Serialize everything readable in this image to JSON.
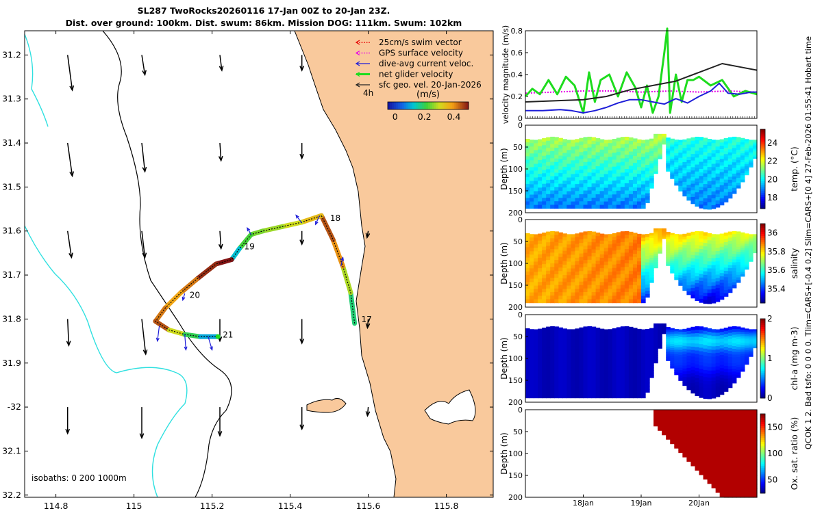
{
  "title": {
    "line1": "SL287 TwoRocks20260116 17-Jan 00Z to 20-Jan 23Z.",
    "line2": "Dist. over ground: 100km. Dist. swum: 86km. Mission DOG: 111km. Swum: 102km"
  },
  "side_text": "QCOK 1  2. Bad tsfo: 0  0  0  0. Tlim=CARS+[-0.4 0.2] Slim=CARS+[0 4] 27-Feb-2026 01:55:41 Hobart time",
  "colors": {
    "land": "#f9c99c",
    "isobath": "#2fe0e0",
    "swim": "#e60000",
    "gps": "#e600e6",
    "current": "#1d1dd8",
    "net": "#1edc1e",
    "sfc": "#222222"
  },
  "chart_data": [
    {
      "type": "map",
      "xlim": [
        114.72,
        115.92
      ],
      "ylim": [
        -32.205,
        -31.145
      ],
      "x_ticks": [
        114.8,
        115,
        115.2,
        115.4,
        115.6,
        115.8
      ],
      "x_tick_labels": [
        "114.8",
        "115",
        "115.2",
        "115.4",
        "115.6",
        "115.8"
      ],
      "y_ticks": [
        -31.2,
        -31.3,
        -31.4,
        -31.5,
        -31.6,
        -31.7,
        -31.8,
        -31.9,
        -32.0,
        -32.1,
        -32.2
      ],
      "y_tick_labels": [
        "31.2",
        "31.3",
        "31.4",
        "31.5",
        "31.6",
        "31.7",
        "31.8",
        "31.9",
        "-32",
        "32.1",
        "32.2"
      ],
      "legend": [
        {
          "key": "swim",
          "label": "25cm/s swim vector",
          "style": "dotted"
        },
        {
          "key": "gps",
          "label": "GPS surface velocity",
          "style": "dotted"
        },
        {
          "key": "current",
          "label": "dive-avg current veloc.",
          "style": "solid"
        },
        {
          "key": "net",
          "label": "net glider velocity",
          "style": "thick"
        },
        {
          "key": "sfc",
          "label": "sfc geo. vel. 20-Jan-2026",
          "style": "solid"
        }
      ],
      "legend_note": "4h",
      "speed_colorbar": {
        "label": "(m/s)",
        "range": [
          -0.05,
          0.5
        ],
        "ticks": [
          0,
          0.2,
          0.4
        ],
        "tick_labels": [
          "0",
          "0.2",
          "0.4"
        ]
      },
      "isobath_label": "isobaths: 0   200  1000m",
      "track": [
        {
          "lon": 115.565,
          "lat": -31.81,
          "speed": 0.18
        },
        {
          "lon": 115.555,
          "lat": -31.74,
          "speed": 0.28
        },
        {
          "lon": 115.535,
          "lat": -31.68,
          "speed": 0.4
        },
        {
          "lon": 115.51,
          "lat": -31.62,
          "speed": 0.45
        },
        {
          "lon": 115.48,
          "lat": -31.565,
          "speed": 0.35
        },
        {
          "lon": 115.43,
          "lat": -31.58,
          "speed": 0.3
        },
        {
          "lon": 115.38,
          "lat": -31.59,
          "speed": 0.27
        },
        {
          "lon": 115.33,
          "lat": -31.6,
          "speed": 0.25
        },
        {
          "lon": 115.3,
          "lat": -31.608,
          "speed": 0.22
        },
        {
          "lon": 115.27,
          "lat": -31.64,
          "speed": 0.12
        },
        {
          "lon": 115.25,
          "lat": -31.665,
          "speed": 0.5
        },
        {
          "lon": 115.21,
          "lat": -31.675,
          "speed": 0.48
        },
        {
          "lon": 115.16,
          "lat": -31.71,
          "speed": 0.42
        },
        {
          "lon": 115.12,
          "lat": -31.74,
          "speed": 0.38
        },
        {
          "lon": 115.08,
          "lat": -31.775,
          "speed": 0.42
        },
        {
          "lon": 115.055,
          "lat": -31.805,
          "speed": 0.45
        },
        {
          "lon": 115.09,
          "lat": -31.825,
          "speed": 0.3
        },
        {
          "lon": 115.13,
          "lat": -31.835,
          "speed": 0.2
        },
        {
          "lon": 115.17,
          "lat": -31.84,
          "speed": 0.1
        },
        {
          "lon": 115.215,
          "lat": -31.84,
          "speed": 0.05
        }
      ],
      "day_labels": [
        {
          "text": "17",
          "lon": 115.57,
          "lat": -31.81
        },
        {
          "text": "18",
          "lon": 115.49,
          "lat": -31.58
        },
        {
          "text": "19",
          "lon": 115.27,
          "lat": -31.645
        },
        {
          "text": "20",
          "lon": 115.13,
          "lat": -31.755
        },
        {
          "text": "21",
          "lon": 115.215,
          "lat": -31.845
        }
      ],
      "geo_vectors": [
        {
          "lon": 114.83,
          "lat": -31.2,
          "dlon": 0.012,
          "dlat": -0.08
        },
        {
          "lon": 115.02,
          "lat": -31.2,
          "dlon": 0.008,
          "dlat": -0.045
        },
        {
          "lon": 115.22,
          "lat": -31.2,
          "dlon": 0.005,
          "dlat": -0.035
        },
        {
          "lon": 115.43,
          "lat": -31.2,
          "dlon": 0.0,
          "dlat": -0.035
        },
        {
          "lon": 114.83,
          "lat": -31.4,
          "dlon": 0.012,
          "dlat": -0.075
        },
        {
          "lon": 115.02,
          "lat": -31.4,
          "dlon": 0.008,
          "dlat": -0.065
        },
        {
          "lon": 115.22,
          "lat": -31.4,
          "dlon": 0.003,
          "dlat": -0.04
        },
        {
          "lon": 115.43,
          "lat": -31.4,
          "dlon": 0.0,
          "dlat": -0.035
        },
        {
          "lon": 114.83,
          "lat": -31.6,
          "dlon": 0.01,
          "dlat": -0.06
        },
        {
          "lon": 115.02,
          "lat": -31.6,
          "dlon": 0.008,
          "dlat": -0.06
        },
        {
          "lon": 115.22,
          "lat": -31.6,
          "dlon": 0.003,
          "dlat": -0.04
        },
        {
          "lon": 115.43,
          "lat": -31.6,
          "dlon": 0.0,
          "dlat": -0.03
        },
        {
          "lon": 115.6,
          "lat": -31.6,
          "dlon": -0.003,
          "dlat": -0.015
        },
        {
          "lon": 114.83,
          "lat": -31.8,
          "dlon": 0.003,
          "dlat": -0.06
        },
        {
          "lon": 115.02,
          "lat": -31.8,
          "dlon": 0.01,
          "dlat": -0.08
        },
        {
          "lon": 115.22,
          "lat": -31.8,
          "dlon": 0.0,
          "dlat": -0.05
        },
        {
          "lon": 115.43,
          "lat": -31.8,
          "dlon": 0.0,
          "dlat": -0.055
        },
        {
          "lon": 115.6,
          "lat": -31.8,
          "dlon": -0.002,
          "dlat": -0.02
        },
        {
          "lon": 114.83,
          "lat": -32.0,
          "dlon": 0.0,
          "dlat": -0.06
        },
        {
          "lon": 115.02,
          "lat": -32.0,
          "dlon": 0.0,
          "dlat": -0.07
        },
        {
          "lon": 115.22,
          "lat": -32.0,
          "dlon": 0.0,
          "dlat": -0.065
        },
        {
          "lon": 115.43,
          "lat": -32.0,
          "dlon": 0.0,
          "dlat": -0.05
        },
        {
          "lon": 115.6,
          "lat": -32.0,
          "dlon": -0.002,
          "dlat": -0.02
        }
      ],
      "current_vectors": [
        {
          "lon": 115.475,
          "lat": -31.565,
          "dlon": -0.01,
          "dlat": -0.02
        },
        {
          "lon": 115.43,
          "lat": -31.582,
          "dlon": -0.015,
          "dlat": 0.018
        },
        {
          "lon": 115.3,
          "lat": -31.608,
          "dlon": -0.01,
          "dlat": 0.015
        },
        {
          "lon": 115.53,
          "lat": -31.68,
          "dlon": 0.005,
          "dlat": 0.02
        },
        {
          "lon": 115.13,
          "lat": -31.742,
          "dlon": -0.005,
          "dlat": -0.015
        },
        {
          "lon": 115.065,
          "lat": -31.815,
          "dlon": -0.005,
          "dlat": -0.035
        },
        {
          "lon": 115.13,
          "lat": -31.835,
          "dlon": 0.003,
          "dlat": -0.035
        },
        {
          "lon": 115.19,
          "lat": -31.84,
          "dlon": 0.01,
          "dlat": -0.03
        }
      ]
    },
    {
      "type": "line",
      "ylabel": "velocity magnitude (m/s)",
      "ylim": [
        0,
        0.8
      ],
      "y_ticks": [
        0,
        0.2,
        0.4,
        0.6,
        0.8
      ],
      "y_tick_labels": [
        "0",
        "0.2",
        "0.4",
        "0.6",
        "0.8"
      ],
      "xlim": [
        17.0,
        21.0
      ],
      "series": [
        {
          "name": "net glider velocity",
          "key": "net",
          "x": [
            17.0,
            17.12,
            17.25,
            17.4,
            17.55,
            17.7,
            17.85,
            18.0,
            18.1,
            18.2,
            18.3,
            18.45,
            18.6,
            18.75,
            18.9,
            19.0,
            19.1,
            19.2,
            19.3,
            19.4,
            19.45,
            19.5,
            19.6,
            19.7,
            19.8,
            19.9,
            20.0,
            20.2,
            20.4,
            20.6,
            20.8,
            21.0
          ],
          "y": [
            0.2,
            0.27,
            0.22,
            0.35,
            0.22,
            0.38,
            0.3,
            0.05,
            0.42,
            0.15,
            0.35,
            0.4,
            0.2,
            0.42,
            0.28,
            0.1,
            0.3,
            0.05,
            0.2,
            0.6,
            0.82,
            0.05,
            0.4,
            0.15,
            0.35,
            0.35,
            0.38,
            0.3,
            0.35,
            0.2,
            0.25,
            0.22
          ]
        },
        {
          "name": "GPS surface velocity",
          "key": "gps",
          "x": [
            17.0,
            17.5,
            18.0,
            18.5,
            19.0,
            19.5,
            20.0,
            20.5,
            21.0
          ],
          "y": [
            0.23,
            0.24,
            0.25,
            0.25,
            0.24,
            0.25,
            0.24,
            0.25,
            0.24
          ]
        },
        {
          "name": "dive-avg current veloc.",
          "key": "current",
          "x": [
            17.0,
            17.3,
            17.6,
            17.8,
            18.0,
            18.2,
            18.4,
            18.6,
            18.8,
            19.0,
            19.2,
            19.4,
            19.6,
            19.8,
            20.0,
            20.2,
            20.35,
            20.5,
            20.7,
            20.9,
            21.0
          ],
          "y": [
            0.07,
            0.07,
            0.08,
            0.07,
            0.05,
            0.07,
            0.1,
            0.14,
            0.17,
            0.17,
            0.15,
            0.13,
            0.18,
            0.14,
            0.2,
            0.25,
            0.32,
            0.23,
            0.22,
            0.24,
            0.24
          ]
        },
        {
          "name": "sfc geo. vel. 20-Jan-2026",
          "key": "sfc",
          "x": [
            17.0,
            17.5,
            18.0,
            18.4,
            18.8,
            19.2,
            19.6,
            20.0,
            20.4,
            20.7,
            21.0
          ],
          "y": [
            0.15,
            0.16,
            0.17,
            0.2,
            0.26,
            0.3,
            0.34,
            0.42,
            0.5,
            0.47,
            0.44
          ]
        }
      ]
    },
    {
      "type": "heatmap",
      "variable": "temperature",
      "ylabel": "Depth (m)",
      "colorbar_label": "temp. (°C)",
      "ylim": [
        0,
        200
      ],
      "y_ticks": [
        0,
        50,
        100,
        150,
        200
      ],
      "y_tick_labels": [
        "0",
        "50",
        "100",
        "150",
        "200"
      ],
      "colorbar_range": [
        16.8,
        25.5
      ],
      "colorbar_ticks": [
        18,
        20,
        22,
        24
      ],
      "colorbar_tick_labels": [
        "18",
        "20",
        "22",
        "24"
      ],
      "surface_value": 21.8,
      "deep_value": 17.0
    },
    {
      "type": "heatmap",
      "variable": "salinity",
      "ylabel": "Depth (m)",
      "colorbar_label": "salinity",
      "ylim": [
        0,
        200
      ],
      "y_ticks": [
        0,
        50,
        100,
        150,
        200
      ],
      "y_tick_labels": [
        "0",
        "50",
        "100",
        "150",
        "200"
      ],
      "colorbar_range": [
        35.25,
        36.1
      ],
      "colorbar_ticks": [
        35.4,
        35.6,
        35.8,
        36
      ],
      "colorbar_tick_labels": [
        "35.4",
        "35.6",
        "35.8",
        "36"
      ],
      "surface_value": 35.95,
      "deep_value": 35.55
    },
    {
      "type": "heatmap",
      "variable": "chlorophyll-a",
      "ylabel": "Depth (m)",
      "colorbar_label": "chl-a (mg m-3)",
      "ylim": [
        0,
        200
      ],
      "y_ticks": [
        0,
        50,
        100,
        150,
        200
      ],
      "y_tick_labels": [
        "0",
        "50",
        "100",
        "150",
        "200"
      ],
      "colorbar_range": [
        0,
        2
      ],
      "colorbar_ticks": [
        0,
        1,
        2
      ],
      "colorbar_tick_labels": [
        "0",
        "1",
        "2"
      ],
      "surface_value": 0.15,
      "max_value": 1.2
    },
    {
      "type": "heatmap",
      "variable": "oxygen saturation",
      "ylabel": "Depth (m)",
      "colorbar_label": "Ox. sat. ratio (%)",
      "ylim": [
        0,
        200
      ],
      "y_ticks": [
        0,
        50,
        100,
        150,
        200
      ],
      "y_tick_labels": [
        "0",
        "50",
        "100",
        "150",
        "200"
      ],
      "colorbar_range": [
        25,
        175
      ],
      "colorbar_ticks": [
        50,
        100,
        150
      ],
      "colorbar_tick_labels": [
        "50",
        "100",
        "150"
      ],
      "surface_value": 175,
      "data_start": 19.1,
      "x_ticks": [
        18,
        19,
        20
      ],
      "x_tick_labels": [
        "18Jan",
        "19Jan",
        "20Jan"
      ]
    }
  ]
}
